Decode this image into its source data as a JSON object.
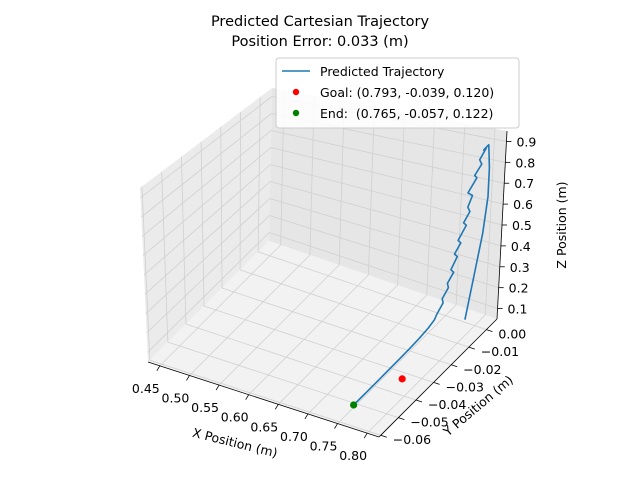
{
  "chart_data": {
    "type": "line",
    "title": "Predicted Cartesian Trajectory",
    "subtitle": "Position Error: 0.033 (m)",
    "xlabel": "X Position (m)",
    "ylabel": "Y Position (m)",
    "zlabel": "Z Position (m)",
    "x_ticks": [
      "0.45",
      "0.50",
      "0.55",
      "0.60",
      "0.65",
      "0.70",
      "0.75",
      "0.80"
    ],
    "y_ticks": [
      "0.00",
      "−0.01",
      "−0.02",
      "−0.03",
      "−0.04",
      "−0.05",
      "−0.06"
    ],
    "z_ticks": [
      "0.1",
      "0.2",
      "0.3",
      "0.4",
      "0.5",
      "0.6",
      "0.7",
      "0.8",
      "0.9"
    ],
    "xlim": [
      0.43,
      0.82
    ],
    "ylim": [
      -0.061,
      0.006
    ],
    "zlim": [
      0.05,
      0.95
    ],
    "grid": true,
    "legend_position": "upper-right",
    "series": [
      {
        "name": "Predicted Trajectory",
        "color": "#1f77b4",
        "points": [
          [
            0.8,
            -0.006,
            0.13
          ],
          [
            0.8,
            -0.002,
            0.3
          ],
          [
            0.8,
            0.002,
            0.48
          ],
          [
            0.8,
            0.004,
            0.64
          ],
          [
            0.8,
            0.004,
            0.78
          ],
          [
            0.8,
            0.003,
            0.9
          ],
          [
            0.795,
            0.002,
            0.88
          ],
          [
            0.793,
            0.004,
            0.87
          ],
          [
            0.792,
            0.001,
            0.84
          ],
          [
            0.79,
            0.003,
            0.8
          ],
          [
            0.788,
            0.0,
            0.77
          ],
          [
            0.786,
            0.002,
            0.74
          ],
          [
            0.784,
            -0.002,
            0.7
          ],
          [
            0.783,
            0.001,
            0.66
          ],
          [
            0.782,
            -0.001,
            0.62
          ],
          [
            0.78,
            0.001,
            0.58
          ],
          [
            0.779,
            -0.002,
            0.55
          ],
          [
            0.778,
            0.0,
            0.52
          ],
          [
            0.777,
            -0.004,
            0.48
          ],
          [
            0.776,
            -0.002,
            0.45
          ],
          [
            0.775,
            -0.005,
            0.42
          ],
          [
            0.774,
            -0.003,
            0.39
          ],
          [
            0.773,
            -0.006,
            0.35
          ],
          [
            0.772,
            -0.004,
            0.32
          ],
          [
            0.771,
            -0.007,
            0.29
          ],
          [
            0.77,
            -0.006,
            0.26
          ],
          [
            0.769,
            -0.009,
            0.23
          ],
          [
            0.768,
            -0.008,
            0.2
          ],
          [
            0.767,
            -0.011,
            0.17
          ],
          [
            0.766,
            -0.012,
            0.15
          ],
          [
            0.765,
            -0.015,
            0.135
          ],
          [
            0.765,
            -0.02,
            0.128
          ],
          [
            0.765,
            -0.025,
            0.125
          ],
          [
            0.765,
            -0.03,
            0.124
          ],
          [
            0.765,
            -0.035,
            0.123
          ],
          [
            0.765,
            -0.04,
            0.123
          ],
          [
            0.765,
            -0.045,
            0.122
          ],
          [
            0.765,
            -0.05,
            0.122
          ],
          [
            0.765,
            -0.057,
            0.122
          ]
        ]
      }
    ],
    "markers": [
      {
        "name": "Goal: (0.793, -0.039, 0.120)",
        "color": "#ff0000",
        "point": [
          0.793,
          -0.039,
          0.12
        ]
      },
      {
        "name": "End:  (0.765, -0.057, 0.122)",
        "color": "#008000",
        "point": [
          0.765,
          -0.057,
          0.122
        ]
      }
    ]
  }
}
